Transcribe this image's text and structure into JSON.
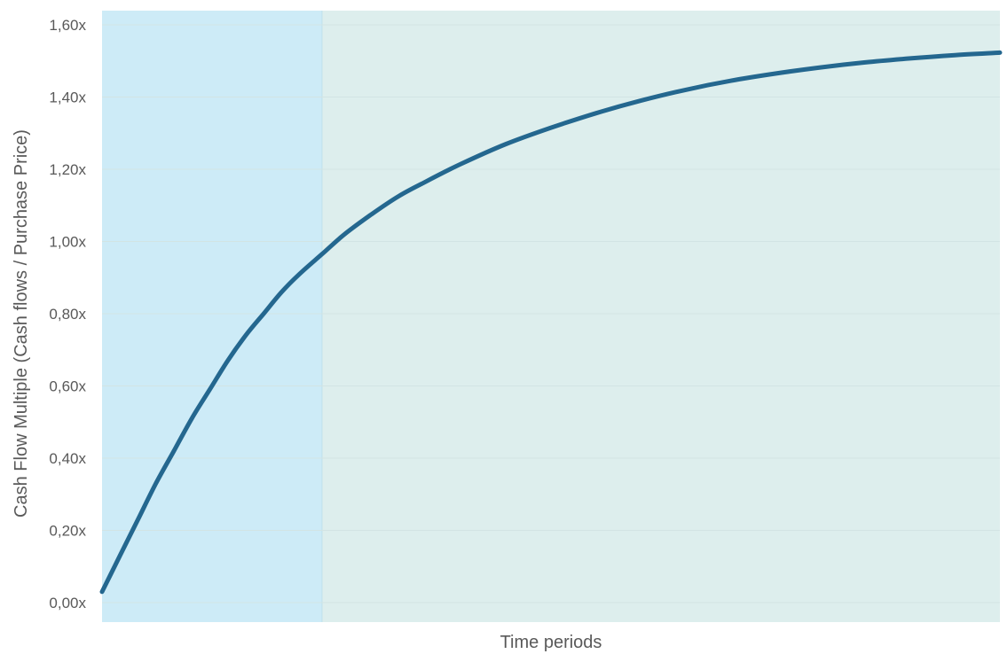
{
  "chart_data": {
    "type": "line",
    "title": "",
    "xlabel": "Time periods",
    "ylabel": "Cash Flow Multiple (Cash flows / Purchase Price)",
    "ylim": [
      0,
      1.6
    ],
    "yticks": [
      {
        "value": 0.0,
        "label": "0,00x"
      },
      {
        "value": 0.2,
        "label": "0,20x"
      },
      {
        "value": 0.4,
        "label": "0,40x"
      },
      {
        "value": 0.6,
        "label": "0,60x"
      },
      {
        "value": 0.8,
        "label": "0,80x"
      },
      {
        "value": 1.0,
        "label": "1,00x"
      },
      {
        "value": 1.2,
        "label": "1,20x"
      },
      {
        "value": 1.4,
        "label": "1,40x"
      },
      {
        "value": 1.6,
        "label": "1,60x"
      }
    ],
    "xlim": [
      0,
      100
    ],
    "grid": true,
    "shaded_regions": [
      {
        "x_start": 0,
        "x_end": 24.5,
        "color": "#cdebf7"
      },
      {
        "x_start": 24.5,
        "x_end": 100,
        "color": "#ddeeed"
      }
    ],
    "series": [
      {
        "color": "#24678f",
        "x": [
          0,
          2,
          4,
          6,
          8,
          10,
          12,
          14,
          16,
          18,
          20,
          22,
          24.5,
          27,
          30,
          33,
          36,
          40,
          45,
          50,
          55,
          60,
          65,
          70,
          75,
          80,
          85,
          90,
          95,
          100
        ],
        "y": [
          0.03,
          0.13,
          0.23,
          0.33,
          0.42,
          0.51,
          0.59,
          0.67,
          0.74,
          0.8,
          0.86,
          0.91,
          0.965,
          1.02,
          1.075,
          1.125,
          1.165,
          1.215,
          1.27,
          1.315,
          1.355,
          1.39,
          1.42,
          1.445,
          1.465,
          1.482,
          1.496,
          1.507,
          1.516,
          1.523
        ]
      }
    ]
  }
}
